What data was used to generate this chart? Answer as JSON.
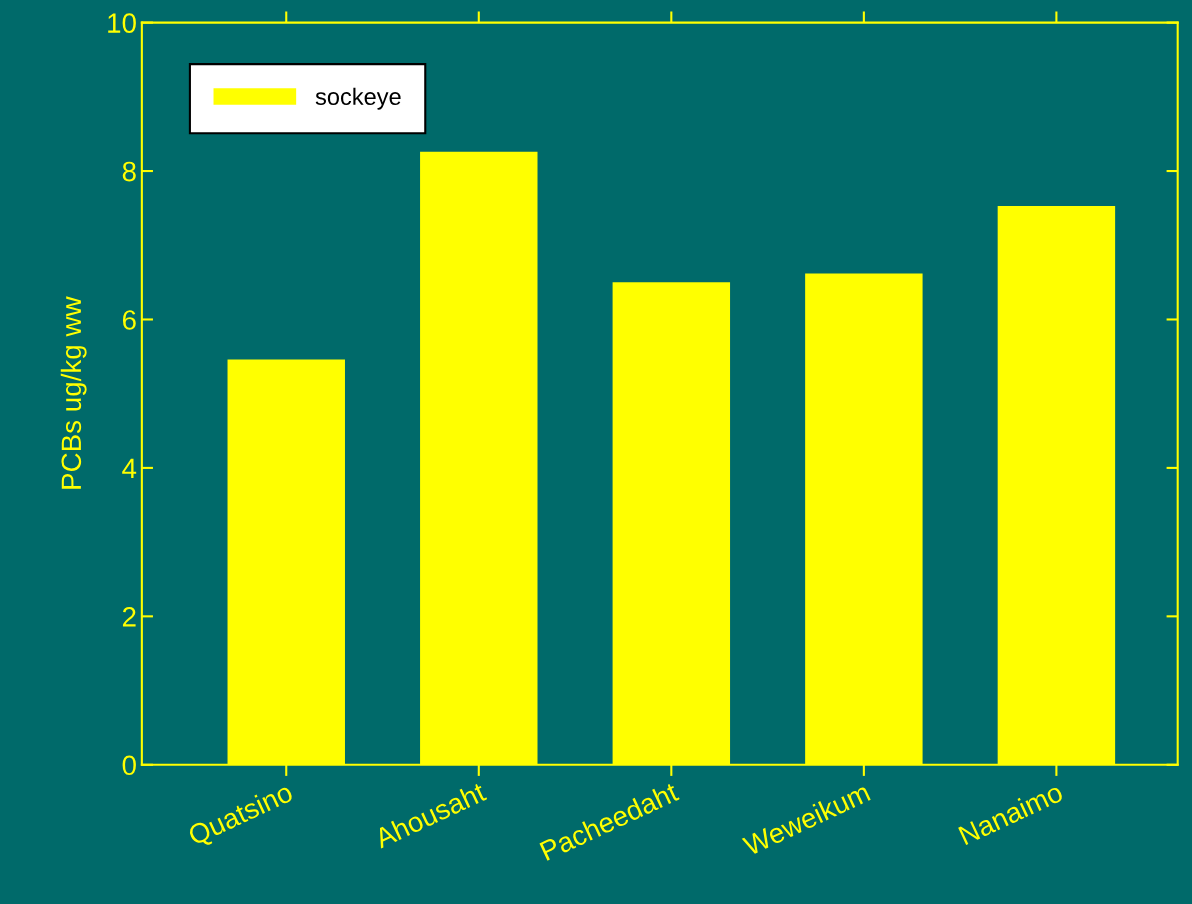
{
  "chart_data": {
    "type": "bar",
    "ylabel": "PCBs ug/kg ww",
    "categories": [
      "Quatsino",
      "Ahousaht",
      "Pacheedaht",
      "Weweikum",
      "Nanaimo"
    ],
    "series": [
      {
        "name": "sockeye",
        "color": "#ffff00",
        "values": [
          5.46,
          8.26,
          6.5,
          6.62,
          7.53
        ]
      }
    ],
    "ylim": [
      0,
      10
    ],
    "yticks": [
      0,
      2,
      4,
      6,
      8,
      10
    ],
    "grid": false,
    "legend": "top left"
  }
}
